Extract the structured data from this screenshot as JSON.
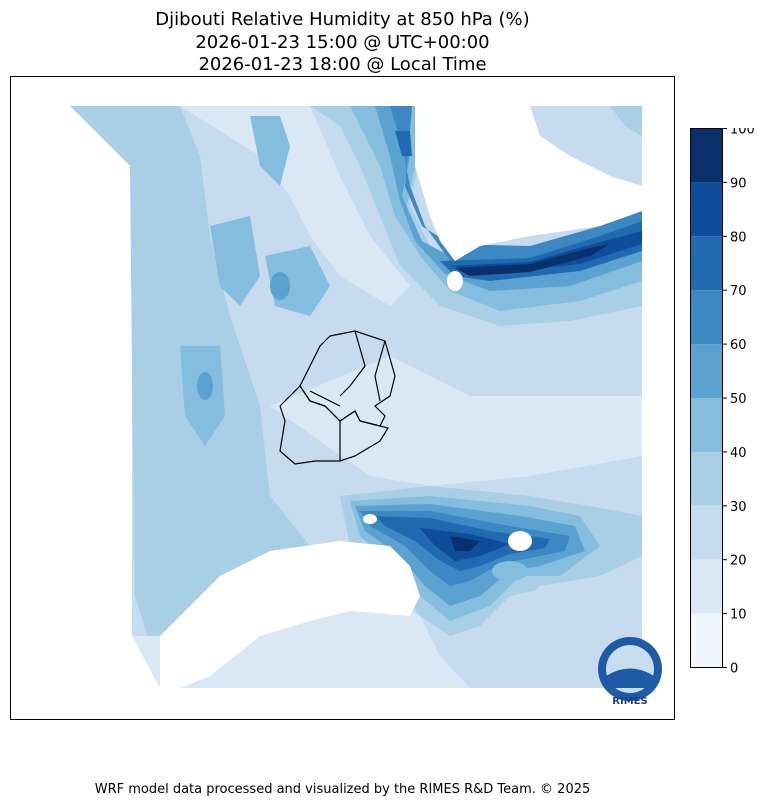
{
  "title": {
    "line1": "Djibouti Relative Humidity at 850 hPa (%)",
    "line2": "2026-01-23 15:00 @ UTC+00:00",
    "line3": "2026-01-23 18:00 @ Local Time"
  },
  "colorbar": {
    "ticks": [
      "0",
      "10",
      "20",
      "30",
      "40",
      "50",
      "60",
      "70",
      "80",
      "90",
      "100"
    ],
    "colors": [
      "#f0f6fd",
      "#dae8f5",
      "#c6dbef",
      "#a9cfe6",
      "#84bddd",
      "#5ba2d1",
      "#3d88c3",
      "#2169b0",
      "#0d4d9a",
      "#09306b"
    ]
  },
  "logo": {
    "text": "RIMES"
  },
  "footer": "WRF model data processed and visualized by the RIMES R&D Team. © 2025"
}
